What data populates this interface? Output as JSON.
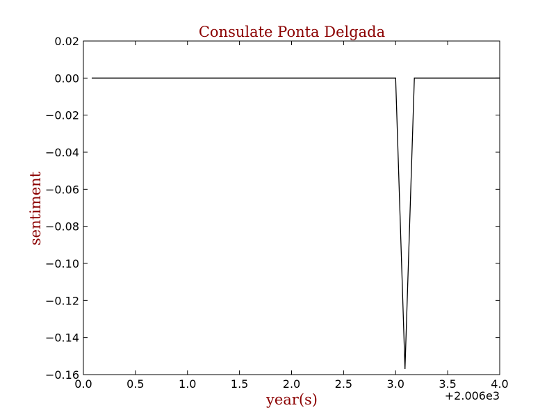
{
  "chart_data": {
    "type": "line",
    "title": "Consulate Ponta Delgada",
    "xlabel": "year(s)",
    "ylabel": "sentiment",
    "x_offset_label": "+2.006e3",
    "xlim": [
      0.0,
      4.0
    ],
    "ylim": [
      -0.16,
      0.02
    ],
    "x_ticks": [
      0.0,
      0.5,
      1.0,
      1.5,
      2.0,
      2.5,
      3.0,
      3.5,
      4.0
    ],
    "x_tick_labels": [
      "0.0",
      "0.5",
      "1.0",
      "1.5",
      "2.0",
      "2.5",
      "3.0",
      "3.5",
      "4.0"
    ],
    "y_ticks": [
      0.02,
      0.0,
      -0.02,
      -0.04,
      -0.06,
      -0.08,
      -0.1,
      -0.12,
      -0.14,
      -0.16
    ],
    "y_tick_labels": [
      "0.02",
      "0.00",
      "−0.02",
      "−0.04",
      "−0.06",
      "−0.08",
      "−0.10",
      "−0.12",
      "−0.14",
      "−0.16"
    ],
    "grid": false,
    "series": [
      {
        "color": "#000000",
        "x": [
          0.08,
          3.0,
          3.09,
          3.18,
          3.95,
          4.0
        ],
        "y": [
          0.0,
          0.0,
          -0.157,
          0.0,
          0.0,
          0.0
        ]
      }
    ]
  }
}
